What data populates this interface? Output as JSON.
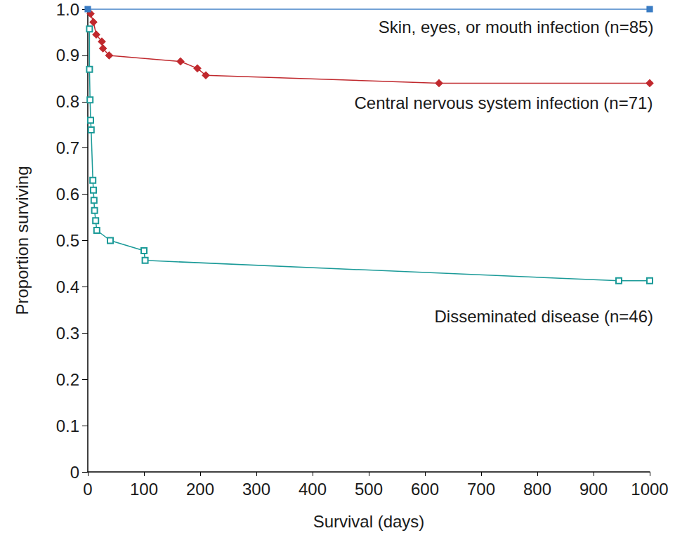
{
  "chart_data": {
    "type": "line",
    "x_label": "Survival (days)",
    "y_label": "Proportion surviving",
    "xlim": [
      0,
      1000
    ],
    "xticks": [
      0,
      100,
      200,
      300,
      400,
      500,
      600,
      700,
      800,
      900,
      1000
    ],
    "ylim": [
      0,
      1
    ],
    "yticks": [
      0,
      0.1,
      0.2,
      0.3,
      0.4,
      0.5,
      0.6,
      0.7,
      0.8,
      0.9,
      {
        "value": 1,
        "label": "1.0"
      }
    ],
    "grid": false,
    "series": [
      {
        "name": "Skin, eyes, or mouth infection (n=85)",
        "color": "#3a7cc4",
        "marker": "square",
        "x": [
          0,
          1000
        ],
        "values": [
          1.0,
          1.0
        ]
      },
      {
        "name": "Central nervous system infection (n=71)",
        "color": "#c0282d",
        "marker": "diamond",
        "x": [
          5,
          10,
          15,
          25,
          27,
          38,
          165,
          195,
          210,
          625,
          1000
        ],
        "values": [
          0.99,
          0.972,
          0.945,
          0.93,
          0.915,
          0.9,
          0.887,
          0.872,
          0.857,
          0.84,
          0.84
        ]
      },
      {
        "name": "Disseminated disease (n=46)",
        "color": "#1a9a98",
        "marker": "open_square",
        "x": [
          3,
          3,
          4,
          5,
          6,
          9,
          10,
          11,
          12,
          14,
          16,
          40,
          100,
          102,
          945,
          1000
        ],
        "values": [
          0.957,
          0.87,
          0.804,
          0.76,
          0.739,
          0.63,
          0.609,
          0.587,
          0.565,
          0.543,
          0.522,
          0.5,
          0.478,
          0.457,
          0.413,
          0.413
        ]
      }
    ]
  }
}
